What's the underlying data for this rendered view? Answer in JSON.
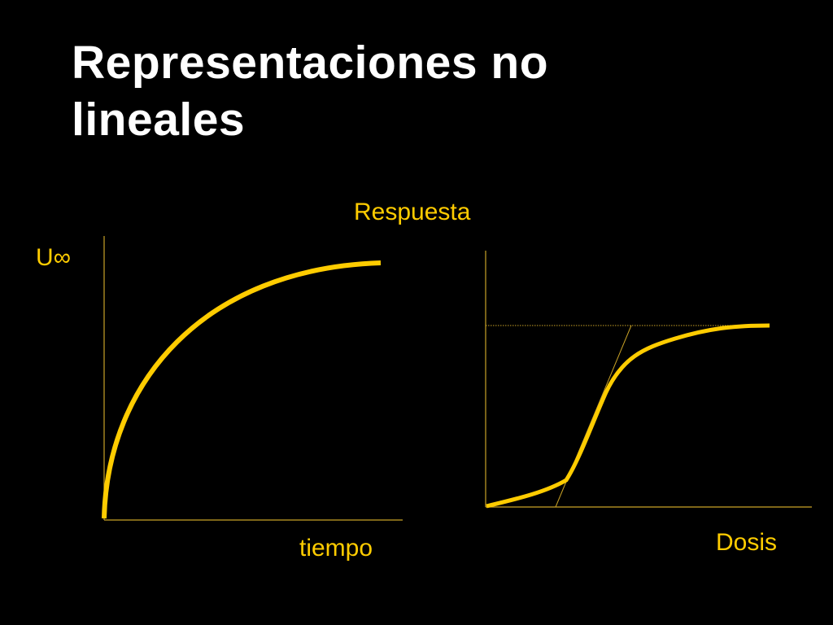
{
  "title": "Representaciones no lineales",
  "left_diagram": {
    "y_label": "U∞",
    "x_label": "tiempo"
  },
  "right_diagram": {
    "y_label": "Respuesta",
    "x_label": "Dosis"
  }
}
